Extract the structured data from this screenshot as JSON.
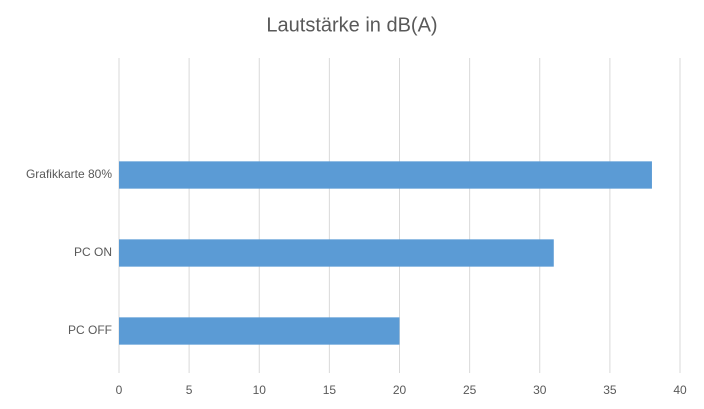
{
  "chart_data": {
    "type": "bar",
    "orientation": "horizontal",
    "title": "Lautstärke in dB(A)",
    "categories": [
      null,
      "Grafikkarte 80%",
      "PC ON",
      "PC OFF"
    ],
    "values": [
      null,
      38,
      31,
      20
    ],
    "color": "#5b9bd5",
    "xlim": [
      0,
      40
    ],
    "xticks": [
      0,
      5,
      10,
      15,
      20,
      25,
      30,
      35,
      40
    ],
    "grid": true
  }
}
